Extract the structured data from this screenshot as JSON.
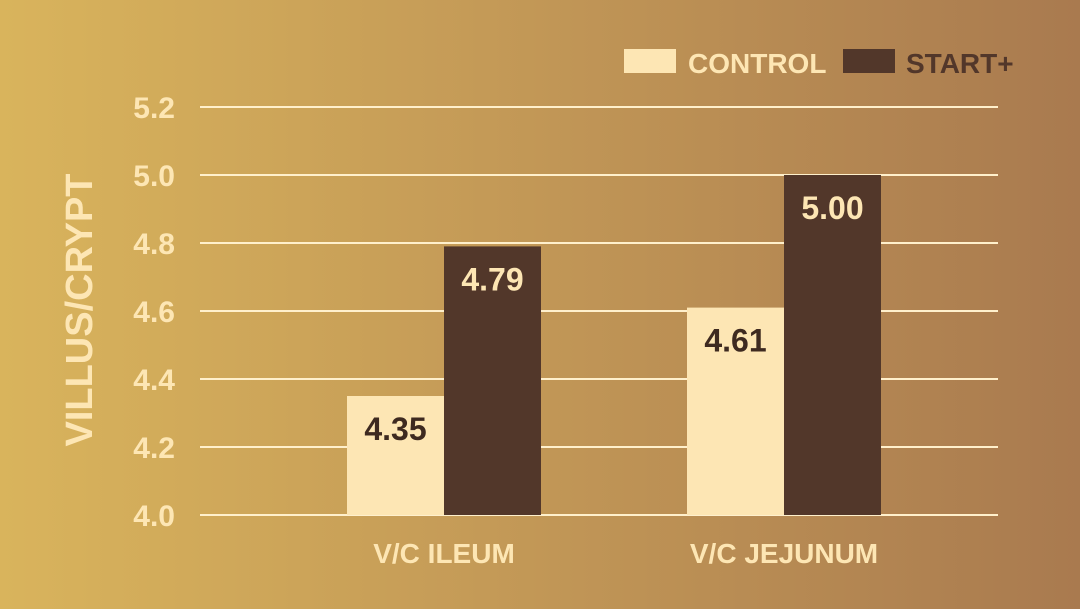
{
  "chart_data": {
    "type": "bar",
    "categories": [
      "V/C ILEUM",
      "V/C JEJUNUM"
    ],
    "series": [
      {
        "name": "CONTROL",
        "values": [
          4.35,
          4.61
        ]
      },
      {
        "name": "START+",
        "values": [
          4.79,
          5.0
        ]
      }
    ],
    "data_labels": [
      [
        "4.35",
        "4.61"
      ],
      [
        "4.79",
        "5.00"
      ]
    ],
    "ylabel": "VILLUS/CRYPT",
    "ylim": [
      4.0,
      5.2
    ],
    "yticks": [
      "4.0",
      "4.2",
      "4.4",
      "4.6",
      "4.8",
      "5.0",
      "5.2"
    ],
    "grid": true,
    "legend_position": "top-right",
    "colors": {
      "control": "#fde6b4",
      "start_plus": "#52372a",
      "axis_text": "#fde6b4",
      "grid": "#fff0cc",
      "control_label": "#3e2a20",
      "start_label": "#fde6b4"
    }
  }
}
